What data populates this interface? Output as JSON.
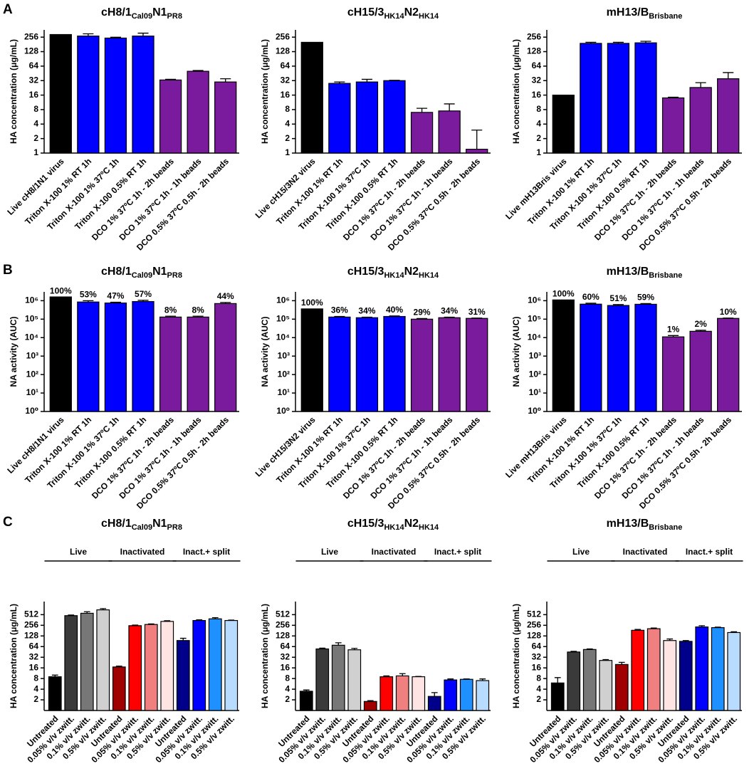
{
  "panels": [
    "A",
    "B",
    "C"
  ],
  "chart_data": [
    {
      "type": "bar",
      "title_parts": [
        {
          "text": "cH8/1"
        },
        {
          "text": "Cal09",
          "subscript": true
        },
        {
          "text": "N1"
        },
        {
          "text": "PR8",
          "subscript": true
        }
      ],
      "ylabel": "HA concentration (μg/mL)",
      "yscale": "log",
      "ylim": [
        1,
        362
      ],
      "yticks": [
        1,
        2,
        4,
        8,
        16,
        32,
        64,
        128,
        256
      ],
      "categories": [
        "Live cH8/1N1 virus",
        "Triton X-100 1% RT 1h",
        "Triton X-100 1% 37ºC 1h",
        "Triton X-100 0.5% RT 1h",
        "DCO 1% 37ºC 1h - 2h beads",
        "DCO 1% 37ºC 1h - 1h beads",
        "DCO 0.5% 37ºC 0.5h - 2h beads"
      ],
      "values": [
        290,
        270,
        245,
        270,
        33,
        50,
        30
      ],
      "errors": [
        0,
        30,
        10,
        40,
        1,
        2,
        5
      ],
      "colors": [
        "#000000",
        "#0000ff",
        "#0000ff",
        "#0000ff",
        "#7a1a9c",
        "#7a1a9c",
        "#7a1a9c"
      ]
    },
    {
      "type": "bar",
      "title_parts": [
        {
          "text": "cH15/3"
        },
        {
          "text": "HK14",
          "subscript": true
        },
        {
          "text": "N2"
        },
        {
          "text": "HK14",
          "subscript": true
        }
      ],
      "ylabel": "HA concentration (μg/mL)",
      "yscale": "log",
      "ylim": [
        1,
        362
      ],
      "yticks": [
        1,
        2,
        4,
        8,
        16,
        32,
        64,
        128,
        256
      ],
      "categories": [
        "Live cH15/3N2 virus",
        "Triton X-100 1% RT 1h",
        "Triton X-100 1% 37ºC 1h",
        "Triton X-100 0.5% RT 1h",
        "DCO 1% 37ºC 1h - 2h beads",
        "DCO 1% 37ºC 1h - 1h beads",
        "DCO 0.5% 37ºC 0.5h - 2h beads"
      ],
      "values": [
        200,
        28,
        30,
        32,
        7,
        7.5,
        1.2
      ],
      "errors": [
        0,
        2,
        4,
        0.5,
        1.5,
        3,
        1.8
      ],
      "colors": [
        "#000000",
        "#0000ff",
        "#0000ff",
        "#0000ff",
        "#7a1a9c",
        "#7a1a9c",
        "#7a1a9c"
      ]
    },
    {
      "type": "bar",
      "title_parts": [
        {
          "text": "mH13/B"
        },
        {
          "text": "Brisbane",
          "subscript": true
        }
      ],
      "ylabel": "HA concentration (μg/mL)",
      "yscale": "log",
      "ylim": [
        1,
        362
      ],
      "yticks": [
        1,
        2,
        4,
        8,
        16,
        32,
        64,
        128,
        256
      ],
      "categories": [
        "Live mH13Bris virus",
        "Triton X-100 1% RT 1h",
        "Triton X-100 1% 37ºC 1h",
        "Triton X-100 0.5% RT 1h",
        "DCO 1% 37ºC 1h - 2h beads",
        "DCO 1% 37ºC 1h - 1h beads",
        "DCO 0.5% 37ºC 0.5h - 2h beads"
      ],
      "values": [
        16,
        190,
        190,
        195,
        14,
        23,
        35
      ],
      "errors": [
        0,
        10,
        10,
        15,
        0.5,
        6,
        12
      ],
      "colors": [
        "#000000",
        "#0000ff",
        "#0000ff",
        "#0000ff",
        "#7a1a9c",
        "#7a1a9c",
        "#7a1a9c"
      ]
    },
    {
      "type": "bar",
      "title_parts": [
        {
          "text": "cH8/1"
        },
        {
          "text": "Cal09",
          "subscript": true
        },
        {
          "text": "N1"
        },
        {
          "text": "PR8",
          "subscript": true
        }
      ],
      "ylabel": "NA activity (AUC)",
      "yscale": "log",
      "ylim": [
        1,
        3000000
      ],
      "yticks": [
        {
          "value": 1,
          "label": "10⁰"
        },
        {
          "value": 10,
          "label": "10¹"
        },
        {
          "value": 100,
          "label": "10²"
        },
        {
          "value": 1000,
          "label": "10³"
        },
        {
          "value": 10000,
          "label": "10⁴"
        },
        {
          "value": 100000,
          "label": "10⁵"
        },
        {
          "value": 1000000,
          "label": "10⁶"
        }
      ],
      "categories": [
        "Live cH8/1N1 virus",
        "Triton X-100 1% RT 1h",
        "Triton X-100 1% 37ºC 1h",
        "Triton X-100 0.5% RT 1h",
        "DCO 1% 37ºC 1h - 2h beads",
        "DCO 1% 37ºC 1h - 1h beads",
        "DCO 0.5% 37ºC 0.5h - 2h beads"
      ],
      "values": [
        1600000,
        850000,
        750000,
        900000,
        130000,
        130000,
        700000
      ],
      "errors": [
        0,
        150000,
        80000,
        150000,
        15000,
        15000,
        100000
      ],
      "annotations": [
        "100%",
        "53%",
        "47%",
        "57%",
        "8%",
        "8%",
        "44%"
      ],
      "colors": [
        "#000000",
        "#0000ff",
        "#0000ff",
        "#0000ff",
        "#7a1a9c",
        "#7a1a9c",
        "#7a1a9c"
      ]
    },
    {
      "type": "bar",
      "title_parts": [
        {
          "text": "cH15/3"
        },
        {
          "text": "HK14",
          "subscript": true
        },
        {
          "text": "N2"
        },
        {
          "text": "HK14",
          "subscript": true
        }
      ],
      "ylabel": "NA activity (AUC)",
      "yscale": "log",
      "ylim": [
        1,
        3000000
      ],
      "yticks": [
        {
          "value": 1,
          "label": "10⁰"
        },
        {
          "value": 10,
          "label": "10¹"
        },
        {
          "value": 100,
          "label": "10²"
        },
        {
          "value": 1000,
          "label": "10³"
        },
        {
          "value": 10000,
          "label": "10⁴"
        },
        {
          "value": 100000,
          "label": "10⁵"
        },
        {
          "value": 1000000,
          "label": "10⁶"
        }
      ],
      "categories": [
        "Live cH15/3N2 virus",
        "Triton X-100 1% RT 1h",
        "Triton X-100 1% 37ºC 1h",
        "Triton X-100 0.5% RT 1h",
        "DCO 1% 37ºC 1h - 2h beads",
        "DCO 1% 37ºC 1h - 1h beads",
        "DCO 0.5% 37ºC 0.5h - 2h beads"
      ],
      "values": [
        360000,
        130000,
        120000,
        140000,
        100000,
        120000,
        110000
      ],
      "errors": [
        0,
        10000,
        8000,
        10000,
        8000,
        8000,
        5000
      ],
      "annotations": [
        "100%",
        "36%",
        "34%",
        "40%",
        "29%",
        "34%",
        "31%"
      ],
      "colors": [
        "#000000",
        "#0000ff",
        "#0000ff",
        "#0000ff",
        "#7a1a9c",
        "#7a1a9c",
        "#7a1a9c"
      ]
    },
    {
      "type": "bar",
      "title_parts": [
        {
          "text": "mH13/B"
        },
        {
          "text": "Brisbane",
          "subscript": true
        }
      ],
      "ylabel": "NA activity (AUC)",
      "yscale": "log",
      "ylim": [
        1,
        3000000
      ],
      "yticks": [
        {
          "value": 1,
          "label": "10⁰"
        },
        {
          "value": 10,
          "label": "10¹"
        },
        {
          "value": 100,
          "label": "10²"
        },
        {
          "value": 1000,
          "label": "10³"
        },
        {
          "value": 10000,
          "label": "10⁴"
        },
        {
          "value": 100000,
          "label": "10⁵"
        },
        {
          "value": 1000000,
          "label": "10⁶"
        }
      ],
      "categories": [
        "Live mH13Bris virus",
        "Triton X-100 1% RT 1h",
        "Triton X-100 1% 37ºC 1h",
        "Triton X-100 0.5% RT 1h",
        "DCO 1% 37ºC 1h - 2h beads",
        "DCO 1% 37ºC 1h - 1h beads",
        "DCO 0.5% 37ºC 0.5h - 2h beads"
      ],
      "values": [
        1100000,
        650000,
        550000,
        640000,
        11000,
        22000,
        110000
      ],
      "errors": [
        0,
        80000,
        70000,
        60000,
        2000,
        3000,
        5000
      ],
      "annotations": [
        "100%",
        "60%",
        "51%",
        "59%",
        "1%",
        "2%",
        "10%"
      ],
      "colors": [
        "#000000",
        "#0000ff",
        "#0000ff",
        "#0000ff",
        "#7a1a9c",
        "#7a1a9c",
        "#7a1a9c"
      ]
    },
    {
      "type": "bar",
      "title_parts": [
        {
          "text": "cH8/1"
        },
        {
          "text": "Cal09",
          "subscript": true
        },
        {
          "text": "N1"
        },
        {
          "text": "PR8",
          "subscript": true
        }
      ],
      "ylabel": "HA concentration (μg/mL)",
      "yscale": "log",
      "ylim": [
        1,
        1200
      ],
      "yticks": [
        2,
        4,
        8,
        16,
        32,
        64,
        128,
        256,
        512
      ],
      "groups": [
        "Live",
        "Inactivated",
        "Inact.+ split"
      ],
      "categories": [
        "Untreated",
        "0.05% v/v zwitt.",
        "0.1% v/v zwitt.",
        "0.5% v/v zwitt.",
        "Untreated",
        "0.05% v/v zwitt.",
        "0.1% v/v zwitt.",
        "0.5% v/v zwitt.",
        "Untreated",
        "0.05% v/v zwitt.",
        "0.1% v/v zwitt.",
        "0.5% v/v zwitt."
      ],
      "values": [
        9,
        480,
        560,
        700,
        17,
        250,
        270,
        330,
        95,
        350,
        390,
        350
      ],
      "errors": [
        1,
        20,
        60,
        60,
        1,
        10,
        10,
        15,
        15,
        15,
        30,
        10
      ],
      "colors": [
        "#000000",
        "#3a3a3a",
        "#777777",
        "#d0d0d0",
        "#a00000",
        "#ff0000",
        "#f08080",
        "#ffe4e4",
        "#00008b",
        "#0000ff",
        "#1e90ff",
        "#b8dcff"
      ]
    },
    {
      "type": "bar",
      "title_parts": [
        {
          "text": "cH15/3"
        },
        {
          "text": "HK14",
          "subscript": true
        },
        {
          "text": "N2"
        },
        {
          "text": "HK14",
          "subscript": true
        }
      ],
      "ylabel": "HA concentration (μg/mL)",
      "yscale": "log",
      "ylim": [
        1,
        1200
      ],
      "yticks": [
        2,
        4,
        8,
        16,
        32,
        64,
        128,
        256,
        512
      ],
      "groups": [
        "Live",
        "Inactivated",
        "Inact.+ split"
      ],
      "categories": [
        "Untreated",
        "0.05% v/v zwitt.",
        "0.1% v/v zwitt.",
        "0.5% v/v zwitt.",
        "Untreated",
        "0.05% v/v zwitt.",
        "0.1% v/v zwitt.",
        "0.5% v/v zwitt.",
        "Untreated",
        "0.05% v/v zwitt.",
        "0.1% v/v zwitt.",
        "0.5% v/v zwitt."
      ],
      "values": [
        3.5,
        55,
        70,
        52,
        1.8,
        9,
        9.5,
        9,
        2.5,
        7.3,
        7.6,
        7
      ],
      "errors": [
        0.3,
        3,
        12,
        5,
        0.1,
        0.5,
        1.5,
        0.2,
        0.7,
        0.5,
        0.2,
        0.8
      ],
      "colors": [
        "#000000",
        "#3a3a3a",
        "#777777",
        "#d0d0d0",
        "#a00000",
        "#ff0000",
        "#f08080",
        "#ffe4e4",
        "#00008b",
        "#0000ff",
        "#1e90ff",
        "#b8dcff"
      ]
    },
    {
      "type": "bar",
      "title_parts": [
        {
          "text": "mH13/B"
        },
        {
          "text": "Brisbane",
          "subscript": true
        }
      ],
      "ylabel": "HA concentration (μg/mL)",
      "yscale": "log",
      "ylim": [
        1,
        1200
      ],
      "yticks": [
        2,
        4,
        8,
        16,
        32,
        64,
        128,
        256,
        512
      ],
      "groups": [
        "Live",
        "Inactivated",
        "Inact.+ split"
      ],
      "categories": [
        "Untreated",
        "0.05% v/v zwitt.",
        "0.1% v/v zwitt.",
        "0.5% v/v zwitt.",
        "Untreated",
        "0.05% v/v zwitt.",
        "0.1% v/v zwitt.",
        "0.5% v/v zwitt.",
        "Untreated",
        "0.05% v/v zwitt.",
        "0.1% v/v zwitt.",
        "0.5% v/v zwitt."
      ],
      "values": [
        6,
        45,
        53,
        26,
        20,
        185,
        205,
        95,
        90,
        230,
        220,
        160
      ],
      "errors": [
        2.5,
        2,
        2,
        1.5,
        3,
        10,
        10,
        10,
        5,
        20,
        8,
        8
      ],
      "colors": [
        "#000000",
        "#3a3a3a",
        "#777777",
        "#d0d0d0",
        "#a00000",
        "#ff0000",
        "#f08080",
        "#ffe4e4",
        "#00008b",
        "#0000ff",
        "#1e90ff",
        "#b8dcff"
      ]
    }
  ]
}
